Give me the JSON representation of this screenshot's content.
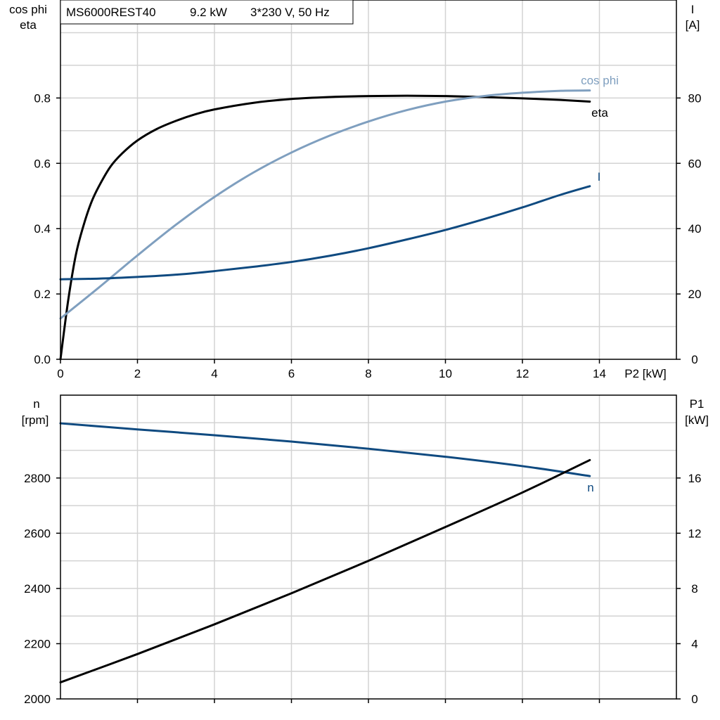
{
  "title": {
    "model": "MS6000REST40",
    "power": "9.2 kW",
    "supply": "3*230 V, 50 Hz"
  },
  "colors": {
    "eta": "#000000",
    "cosphi": "#7f9fbf",
    "current": "#0f4a80",
    "speed": "#0f4a80",
    "p1": "#000000",
    "grid": "#d3d3d3"
  },
  "chart_data": [
    {
      "type": "line",
      "xlabel": "P2 [kW]",
      "xlim": [
        0,
        16
      ],
      "xticks": [
        0,
        2,
        4,
        6,
        8,
        10,
        12,
        14
      ],
      "left_axis": {
        "label_line1": "cos phi",
        "label_line2": "eta",
        "ylim": [
          0,
          1.1
        ],
        "ticks": [
          "0.0",
          "0.2",
          "0.4",
          "0.6",
          "0.8"
        ]
      },
      "right_axis": {
        "label_line1": "I",
        "label_line2": "[A]",
        "ylim": [
          0,
          110
        ],
        "ticks": [
          "0",
          "20",
          "40",
          "60",
          "80"
        ]
      },
      "grid": true,
      "series": [
        {
          "name": "eta",
          "axis": "left",
          "x": [
            0,
            0.2,
            0.4,
            0.6,
            0.8,
            1.0,
            1.3,
            1.6,
            2.0,
            2.5,
            3.0,
            3.5,
            4.0,
            5.0,
            6.0,
            7.0,
            8.0,
            9.0,
            10.0,
            11.0,
            12.0,
            13.0,
            13.75
          ],
          "y": [
            0.0,
            0.18,
            0.32,
            0.41,
            0.48,
            0.53,
            0.59,
            0.63,
            0.67,
            0.705,
            0.73,
            0.75,
            0.765,
            0.785,
            0.797,
            0.803,
            0.806,
            0.807,
            0.806,
            0.803,
            0.799,
            0.794,
            0.789
          ]
        },
        {
          "name": "cos phi",
          "axis": "left",
          "x": [
            0,
            1,
            2,
            3,
            4,
            5,
            6,
            7,
            8,
            9,
            10,
            11,
            12,
            13,
            13.75
          ],
          "y": [
            0.125,
            0.22,
            0.318,
            0.412,
            0.497,
            0.571,
            0.633,
            0.685,
            0.728,
            0.763,
            0.789,
            0.806,
            0.816,
            0.822,
            0.823
          ]
        },
        {
          "name": "I",
          "axis": "right",
          "x": [
            0,
            1,
            2,
            3,
            4,
            5,
            6,
            7,
            8,
            9,
            10,
            11,
            12,
            13,
            13.75
          ],
          "y": [
            24.5,
            24.7,
            25.2,
            25.9,
            27.0,
            28.3,
            29.8,
            31.7,
            34.0,
            36.7,
            39.6,
            42.9,
            46.5,
            50.4,
            53.0
          ]
        }
      ]
    },
    {
      "type": "line",
      "xlim": [
        0,
        16
      ],
      "left_axis": {
        "label_line1": "n",
        "label_line2": "[rpm]",
        "ylim": [
          2000,
          3100
        ],
        "ticks": [
          "2000",
          "2200",
          "2400",
          "2600",
          "2800"
        ]
      },
      "right_axis": {
        "label_line1": "P1",
        "label_line2": "[kW]",
        "ylim": [
          0,
          22
        ],
        "ticks": [
          "0",
          "4",
          "8",
          "12",
          "16"
        ]
      },
      "grid": true,
      "series": [
        {
          "name": "n",
          "axis": "left",
          "x": [
            0,
            2,
            4,
            6,
            8,
            10,
            12,
            13.75
          ],
          "y": [
            2998,
            2976,
            2955,
            2932,
            2906,
            2877,
            2843,
            2807
          ]
        },
        {
          "name": "P1",
          "axis": "right",
          "x": [
            0,
            2,
            4,
            6,
            8,
            10,
            12,
            13.75
          ],
          "y": [
            1.2,
            3.25,
            5.4,
            7.65,
            10.0,
            12.45,
            14.95,
            17.3
          ]
        }
      ]
    }
  ]
}
